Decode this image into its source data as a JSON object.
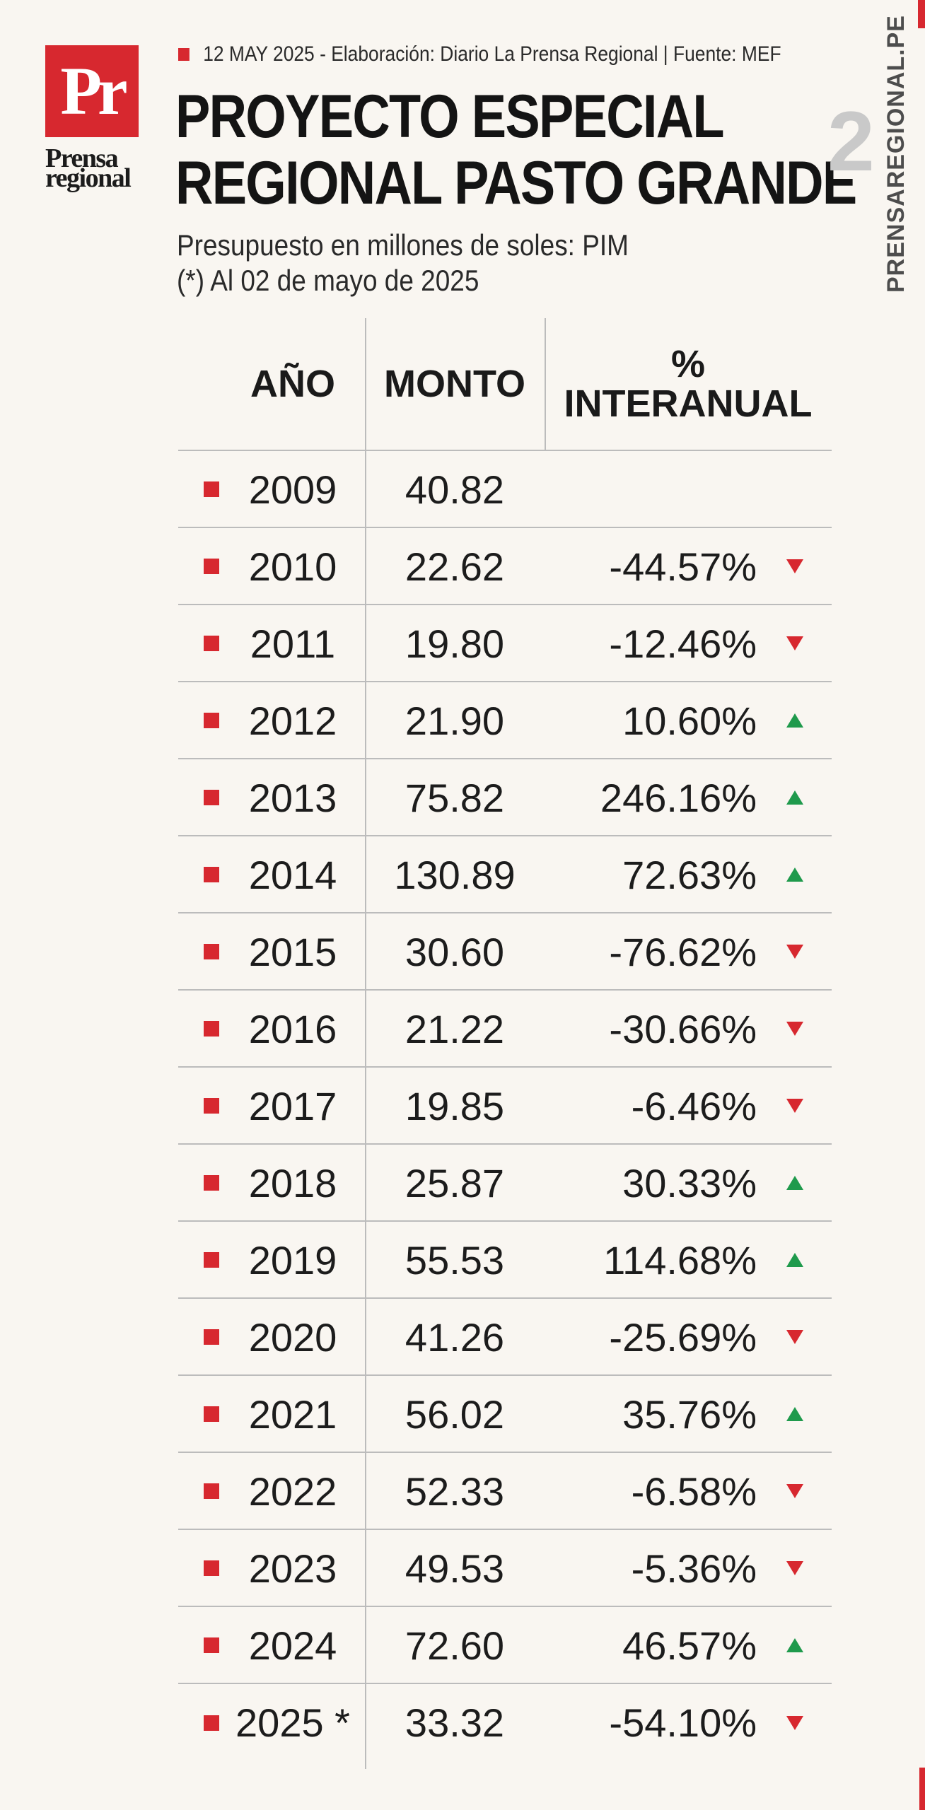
{
  "brand": {
    "logo_letters": "Pr",
    "logo_line1": "Prensa",
    "logo_line2": "regional",
    "side_text": "PRENSAREGIONAL.PE",
    "page_number": "2",
    "accent_color": "#d7282f"
  },
  "meta": "12 MAY 2025 -  Elaboración: Diario La Prensa Regional | Fuente: MEF",
  "title_line1": "PROYECTO ESPECIAL",
  "title_line2": "REGIONAL PASTO GRANDE",
  "subtitle_line1": "Presupuesto en millones de soles: PIM",
  "subtitle_line2": "(*) Al 02 de mayo de 2025",
  "table": {
    "headers": {
      "year": "AÑO",
      "amount": "MONTO",
      "pct_line1": "%",
      "pct_line2": "INTERANUAL"
    },
    "rows": [
      {
        "year": "2009",
        "amount": "40.82",
        "pct": "",
        "trend": ""
      },
      {
        "year": "2010",
        "amount": "22.62",
        "pct": "-44.57%",
        "trend": "down"
      },
      {
        "year": "2011",
        "amount": "19.80",
        "pct": "-12.46%",
        "trend": "down"
      },
      {
        "year": "2012",
        "amount": "21.90",
        "pct": "10.60%",
        "trend": "up"
      },
      {
        "year": "2013",
        "amount": "75.82",
        "pct": "246.16%",
        "trend": "up"
      },
      {
        "year": "2014",
        "amount": "130.89",
        "pct": "72.63%",
        "trend": "up"
      },
      {
        "year": "2015",
        "amount": "30.60",
        "pct": "-76.62%",
        "trend": "down"
      },
      {
        "year": "2016",
        "amount": "21.22",
        "pct": "-30.66%",
        "trend": "down"
      },
      {
        "year": "2017",
        "amount": "19.85",
        "pct": "-6.46%",
        "trend": "down"
      },
      {
        "year": "2018",
        "amount": "25.87",
        "pct": "30.33%",
        "trend": "up"
      },
      {
        "year": "2019",
        "amount": "55.53",
        "pct": "114.68%",
        "trend": "up"
      },
      {
        "year": "2020",
        "amount": "41.26",
        "pct": "-25.69%",
        "trend": "down"
      },
      {
        "year": "2021",
        "amount": "56.02",
        "pct": "35.76%",
        "trend": "up"
      },
      {
        "year": "2022",
        "amount": "52.33",
        "pct": "-6.58%",
        "trend": "down"
      },
      {
        "year": "2023",
        "amount": "49.53",
        "pct": "-5.36%",
        "trend": "down"
      },
      {
        "year": "2024",
        "amount": "72.60",
        "pct": "46.57%",
        "trend": "up"
      },
      {
        "year": "2025 *",
        "amount": "33.32",
        "pct": "-54.10%",
        "trend": "down"
      }
    ]
  }
}
